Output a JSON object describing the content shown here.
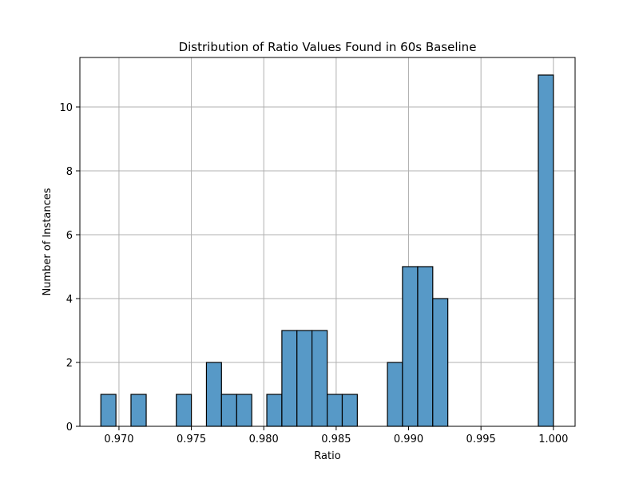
{
  "chart_data": {
    "type": "bar",
    "title": "Distribution of Ratio Values Found in 60s Baseline",
    "xlabel": "Ratio",
    "ylabel": "Number of Instances",
    "xlim": [
      0.9673,
      1.0015
    ],
    "ylim": [
      0,
      11.55
    ],
    "x_ticks": [
      0.97,
      0.975,
      0.98,
      0.985,
      0.99,
      0.995,
      1.0
    ],
    "x_tick_labels": [
      "0.970",
      "0.975",
      "0.980",
      "0.985",
      "0.990",
      "0.995",
      "1.000"
    ],
    "y_ticks": [
      0,
      2,
      4,
      6,
      8,
      10
    ],
    "y_tick_labels": [
      "0",
      "2",
      "4",
      "6",
      "8",
      "10"
    ],
    "grid": true,
    "bar_color": "#5799c7",
    "edge_color": "#000000",
    "bin_edges": [
      0.96875,
      0.96979,
      0.97083,
      0.97188,
      0.97292,
      0.97396,
      0.975,
      0.97604,
      0.97708,
      0.97813,
      0.97917,
      0.98021,
      0.98125,
      0.98229,
      0.98333,
      0.98438,
      0.98542,
      0.98646,
      0.9875,
      0.98854,
      0.98958,
      0.99063,
      0.99167,
      0.99271,
      0.99375,
      0.99479,
      0.99583,
      0.99688,
      0.99792,
      0.99896,
      1.0
    ],
    "counts": [
      1,
      0,
      1,
      0,
      0,
      1,
      0,
      2,
      1,
      1,
      0,
      1,
      3,
      3,
      3,
      1,
      1,
      0,
      0,
      2,
      5,
      5,
      4,
      0,
      0,
      0,
      0,
      0,
      0,
      11
    ]
  }
}
